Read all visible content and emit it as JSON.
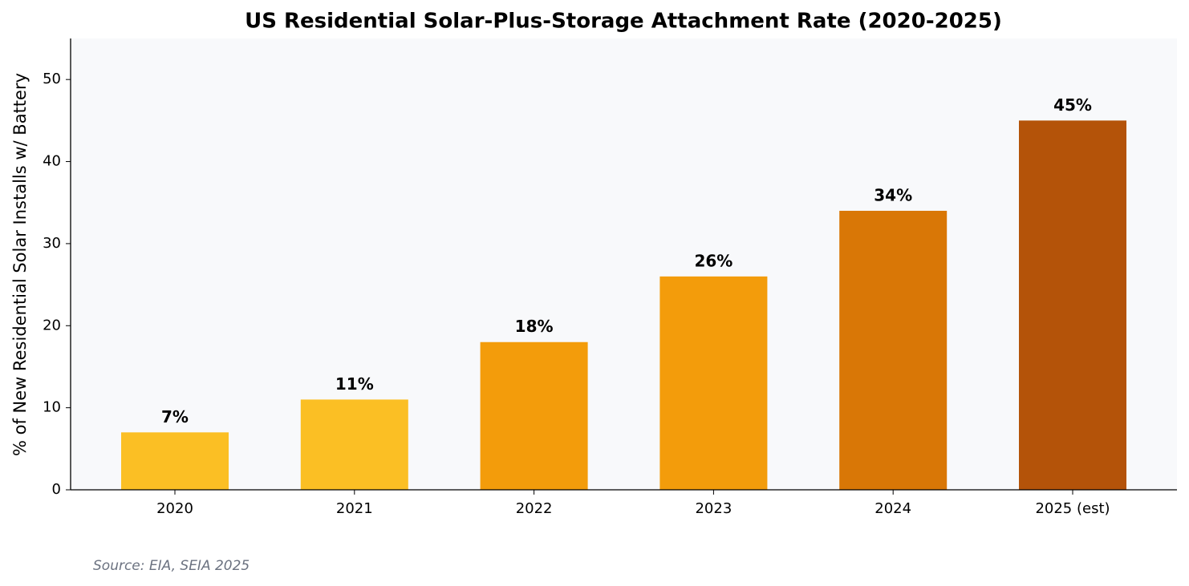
{
  "chart_data": {
    "type": "bar",
    "title": "US Residential Solar-Plus-Storage Attachment Rate (2020-2025)",
    "ylabel": "% of New Residential Solar Installs w/ Battery",
    "categories": [
      "2020",
      "2021",
      "2022",
      "2023",
      "2024",
      "2025 (est)"
    ],
    "values": [
      7,
      11,
      18,
      26,
      34,
      45
    ],
    "value_labels": [
      "7%",
      "11%",
      "18%",
      "26%",
      "34%",
      "45%"
    ],
    "colors": [
      "#fbbf24",
      "#fbbf24",
      "#f39c0b",
      "#f39c0b",
      "#d97706",
      "#b45309"
    ],
    "ylim": [
      0,
      55
    ],
    "yticks": [
      0,
      10,
      20,
      30,
      40,
      50
    ],
    "grid": false,
    "source": "Source: EIA, SEIA 2025"
  }
}
